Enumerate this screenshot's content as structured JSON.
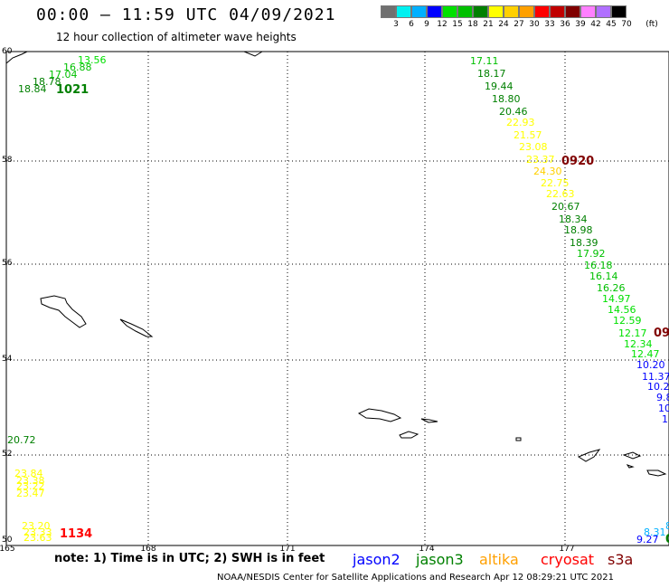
{
  "header": {
    "title": "00:00 – 11:59 UTC 04/09/2021",
    "subtitle": "12 hour collection of altimeter wave heights"
  },
  "scale": {
    "labels": [
      "3",
      "6",
      "9",
      "12",
      "15",
      "18",
      "21",
      "24",
      "27",
      "30",
      "33",
      "36",
      "39",
      "42",
      "45",
      "70"
    ],
    "unit": "(ft)",
    "colors": [
      "#707070",
      "#00f0f0",
      "#00b0ff",
      "#0000ff",
      "#00e000",
      "#00c000",
      "#008000",
      "#ffff00",
      "#ffd000",
      "#ffa000",
      "#ff0000",
      "#c00000",
      "#800000",
      "#ff80ff",
      "#b070ff",
      "#000000"
    ]
  },
  "axes": {
    "x_ticks": [
      "165",
      "168",
      "171",
      "174",
      "177"
    ],
    "y_ticks": [
      "60",
      "58",
      "56",
      "54",
      "52",
      "50"
    ]
  },
  "tracks": [
    {
      "time": "1021",
      "time_color": "#008000",
      "points": [
        {
          "v": "18.84",
          "c": "#008000"
        },
        {
          "v": "18.78",
          "c": "#008000"
        },
        {
          "v": "17.04",
          "c": "#00c000"
        },
        {
          "v": "16.88",
          "c": "#00c000"
        },
        {
          "v": "13.56",
          "c": "#00e000"
        }
      ]
    },
    {
      "time": "0920",
      "time_color": "#800000",
      "points": [
        {
          "v": "17.11",
          "c": "#00c000"
        },
        {
          "v": "18.17",
          "c": "#008000"
        },
        {
          "v": "19.44",
          "c": "#008000"
        },
        {
          "v": "18.80",
          "c": "#008000"
        },
        {
          "v": "20.46",
          "c": "#008000"
        },
        {
          "v": "22.93",
          "c": "#ffff00"
        },
        {
          "v": "21.57",
          "c": "#ffff00"
        },
        {
          "v": "23.08",
          "c": "#ffff00"
        },
        {
          "v": "23.37",
          "c": "#ffff00"
        },
        {
          "v": "24.30",
          "c": "#ffd000"
        },
        {
          "v": "22.75",
          "c": "#ffff00"
        },
        {
          "v": "22.63",
          "c": "#ffff00"
        },
        {
          "v": "20.67",
          "c": "#008000"
        },
        {
          "v": "18.34",
          "c": "#008000"
        },
        {
          "v": "18.98",
          "c": "#008000"
        },
        {
          "v": "18.39",
          "c": "#008000"
        },
        {
          "v": "17.92",
          "c": "#00c000"
        },
        {
          "v": "16.18",
          "c": "#00c000"
        },
        {
          "v": "16.14",
          "c": "#00c000"
        },
        {
          "v": "16.26",
          "c": "#00c000"
        },
        {
          "v": "14.97",
          "c": "#00e000"
        },
        {
          "v": "14.56",
          "c": "#00e000"
        },
        {
          "v": "12.59",
          "c": "#00e000"
        },
        {
          "v": "12.17",
          "c": "#00e000"
        },
        {
          "v": "12.34",
          "c": "#00e000"
        },
        {
          "v": "12.47",
          "c": "#00e000"
        }
      ]
    },
    {
      "time": "09",
      "time_color": "#800000",
      "points": [
        {
          "v": "10.20",
          "c": "#0000ff"
        },
        {
          "v": "11.37",
          "c": "#0000ff"
        },
        {
          "v": "10.20",
          "c": "#0000ff"
        },
        {
          "v": "9.8",
          "c": "#0000ff"
        },
        {
          "v": "10",
          "c": "#0000ff"
        },
        {
          "v": "1",
          "c": "#0000ff"
        }
      ]
    },
    {
      "time": "1134",
      "time_color": "#ff0000",
      "points": [
        {
          "v": "20.72",
          "c": "#008000"
        },
        {
          "v": "23.84",
          "c": "#ffff00"
        },
        {
          "v": "23.38",
          "c": "#ffff00"
        },
        {
          "v": "23.22",
          "c": "#ffff00"
        },
        {
          "v": "23.47",
          "c": "#ffff00"
        },
        {
          "v": "23.20",
          "c": "#ffff00"
        },
        {
          "v": "23.33",
          "c": "#ffff00"
        },
        {
          "v": "23.63",
          "c": "#ffff00"
        }
      ]
    },
    {
      "time": "0",
      "time_color": "#008000",
      "points": [
        {
          "v": "8.1",
          "c": "#00b0ff"
        },
        {
          "v": "8.31",
          "c": "#00b0ff"
        },
        {
          "v": "9.27",
          "c": "#0000ff"
        }
      ]
    }
  ],
  "footer": {
    "note": "note: 1) Time is in UTC; 2) SWH is in feet",
    "missions": [
      {
        "name": "jason2",
        "color": "#0000ff"
      },
      {
        "name": "jason3",
        "color": "#008000"
      },
      {
        "name": "altika",
        "color": "#ffa000"
      },
      {
        "name": "cryosat",
        "color": "#ff0000"
      },
      {
        "name": "s3a",
        "color": "#800000"
      }
    ],
    "credit": "NOAA/NESDIS Center for Satellite Applications and Research    Apr 12 08:29:21 UTC 2021"
  }
}
